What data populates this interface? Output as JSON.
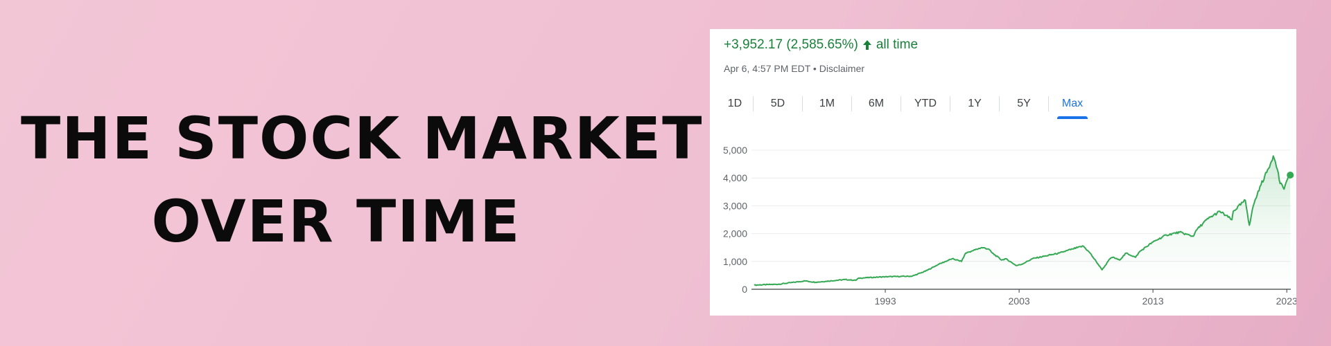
{
  "headline": {
    "line1": "THE STOCK MARKET",
    "line2": "OVER TIME"
  },
  "summary": {
    "change": "+3,952.17 (2,585.65%)",
    "arrow_icon": "arrow-up-icon",
    "period": "all time",
    "timestamp": "Apr 6, 4:57 PM EDT",
    "separator": "•",
    "disclaimer": "Disclaimer"
  },
  "tabs": [
    {
      "label": "1D",
      "active": false
    },
    {
      "label": "5D",
      "active": false
    },
    {
      "label": "1M",
      "active": false
    },
    {
      "label": "6M",
      "active": false
    },
    {
      "label": "YTD",
      "active": false
    },
    {
      "label": "1Y",
      "active": false
    },
    {
      "label": "5Y",
      "active": false
    },
    {
      "label": "Max",
      "active": true
    }
  ],
  "colors": {
    "line": "#34a853",
    "positive_text": "#188038",
    "active_tab": "#1a73e8"
  },
  "chart_data": {
    "type": "area",
    "title": "",
    "xlabel": "",
    "ylabel": "",
    "xlim": [
      1983.0,
      2023.3
    ],
    "ylim": [
      0,
      5000
    ],
    "y_ticks": [
      0,
      1000,
      2000,
      3000,
      4000,
      5000
    ],
    "y_tick_labels": [
      "0",
      "1,000",
      "2,000",
      "3,000",
      "4,000",
      "5,000"
    ],
    "x_ticks": [
      1993,
      2003,
      2013,
      2023
    ],
    "x_tick_labels": [
      "1993",
      "2003",
      "2013",
      "2023"
    ],
    "grid": true,
    "legend": "none",
    "series": [
      {
        "x": [
          1983.2,
          1985,
          1987,
          1987.8,
          1988,
          1990,
          1990.8,
          1991,
          1993,
          1995,
          1996,
          1997,
          1998,
          1998.7,
          1999,
          1999.5,
          2000.2,
          2000.7,
          2001,
          2001.7,
          2002,
          2002.8,
          2003.2,
          2004,
          2005,
          2006,
          2007,
          2007.8,
          2008.3,
          2008.9,
          2009.2,
          2009.8,
          2010,
          2010.5,
          2011,
          2011.7,
          2012,
          2013,
          2014,
          2015,
          2016,
          2016.2,
          2017,
          2018,
          2018.9,
          2019,
          2019.9,
          2020.2,
          2020.5,
          2021,
          2021.5,
          2021.99,
          2022.3,
          2022.5,
          2022.8,
          2023.0,
          2023.26
        ],
        "y": [
          150,
          180,
          300,
          250,
          260,
          350,
          320,
          400,
          450,
          470,
          650,
          900,
          1100,
          1000,
          1300,
          1380,
          1500,
          1450,
          1300,
          1050,
          1100,
          850,
          900,
          1100,
          1200,
          1300,
          1450,
          1550,
          1300,
          900,
          700,
          1100,
          1150,
          1050,
          1300,
          1150,
          1350,
          1700,
          1950,
          2050,
          1900,
          2100,
          2500,
          2800,
          2500,
          2800,
          3200,
          2300,
          3000,
          3700,
          4200,
          4790,
          4300,
          3800,
          3600,
          3900,
          4105
        ]
      }
    ]
  }
}
